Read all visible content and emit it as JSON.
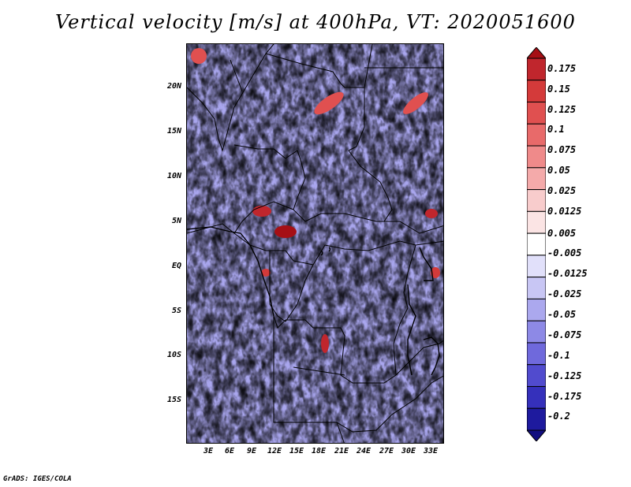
{
  "title": "Vertical velocity [m/s] at 400hPa, VT: 2020051600",
  "footer": "GrADS: IGES/COLA",
  "map": {
    "lat_labels": [
      "20N",
      "15N",
      "10N",
      "5N",
      "EQ",
      "5S",
      "10S",
      "15S"
    ],
    "lon_labels": [
      "3E",
      "6E",
      "9E",
      "12E",
      "15E",
      "18E",
      "21E",
      "24E",
      "27E",
      "30E",
      "33E"
    ]
  },
  "colorbar": {
    "labels": [
      "0.175",
      "0.15",
      "0.125",
      "0.1",
      "0.075",
      "0.05",
      "0.025",
      "0.0125",
      "0.005",
      "-0.005",
      "-0.0125",
      "-0.025",
      "-0.05",
      "-0.075",
      "-0.1",
      "-0.125",
      "-0.175",
      "-0.2"
    ],
    "colors": [
      "#a50f15",
      "#c0262d",
      "#d43a3a",
      "#e05050",
      "#e86a6a",
      "#ef8a8a",
      "#f4aaaa",
      "#f8cccc",
      "#fbe4e4",
      "#ffffff",
      "#e1e0fa",
      "#c8c6f4",
      "#aba8ee",
      "#8d89e6",
      "#6f69dc",
      "#514bce",
      "#3530bb",
      "#1e1a9e",
      "#120e80"
    ]
  }
}
